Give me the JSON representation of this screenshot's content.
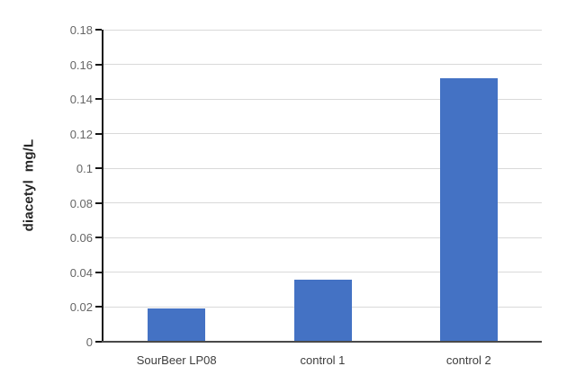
{
  "chart_data": {
    "type": "bar",
    "title": "",
    "xlabel": "",
    "ylabel": "diacetyl  mg/L",
    "categories": [
      "SourBeer LP08",
      "control 1",
      "control 2"
    ],
    "values": [
      0.019,
      0.036,
      0.152
    ],
    "ylim": [
      0,
      0.18
    ],
    "ytick_step": 0.02,
    "ytick_labels": [
      "0",
      "0.02",
      "0.04",
      "0.06",
      "0.08",
      "0.1",
      "0.12",
      "0.14",
      "0.16",
      "0.18"
    ],
    "grid": true,
    "legend_position": "none",
    "bar_color": "#4472c4",
    "gridline_color": "#d9d9d9",
    "axis_line_color": "#161616",
    "baseline_color": "#4a4a4a",
    "tick_label_color": "#666666",
    "category_label_color": "#3d3d3d"
  }
}
